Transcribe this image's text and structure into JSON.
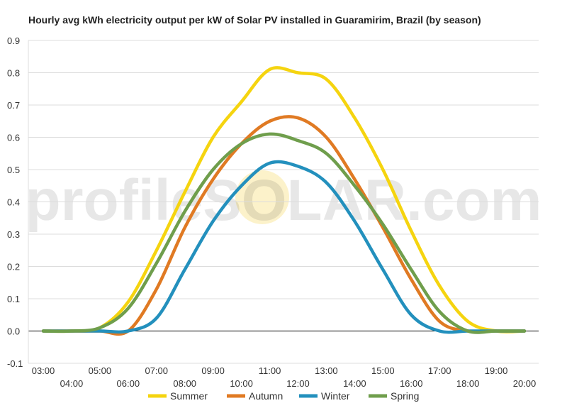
{
  "chart_data": {
    "type": "line",
    "title": "Hourly avg kWh electricity output per kW of Solar PV installed in Guaramirim, Brazil (by season)",
    "watermark": "profileSOLAR.com",
    "xlabel": "",
    "ylabel": "",
    "ylim": [
      -0.1,
      0.9
    ],
    "yticks": [
      -0.1,
      0.0,
      0.1,
      0.2,
      0.3,
      0.4,
      0.5,
      0.6,
      0.7,
      0.8,
      0.9
    ],
    "ytick_labels": [
      "-0.1",
      "0.0",
      "0.1",
      "0.2",
      "0.3",
      "0.4",
      "0.5",
      "0.6",
      "0.7",
      "0.8",
      "0.9"
    ],
    "x": [
      "03:00",
      "04:00",
      "05:00",
      "06:00",
      "07:00",
      "08:00",
      "09:00",
      "10:00",
      "11:00",
      "12:00",
      "13:00",
      "14:00",
      "15:00",
      "16:00",
      "17:00",
      "18:00",
      "19:00",
      "20:00"
    ],
    "grid": true,
    "legend_position": "bottom",
    "series": [
      {
        "name": "Summer",
        "color": "#f5d40f",
        "values": [
          0.0,
          0.0,
          0.01,
          0.09,
          0.25,
          0.43,
          0.6,
          0.71,
          0.81,
          0.8,
          0.78,
          0.66,
          0.5,
          0.31,
          0.14,
          0.03,
          0.0,
          0.0
        ]
      },
      {
        "name": "Autumn",
        "color": "#e07a23",
        "values": [
          0.0,
          0.0,
          0.0,
          0.0,
          0.13,
          0.32,
          0.47,
          0.58,
          0.65,
          0.66,
          0.6,
          0.47,
          0.32,
          0.16,
          0.03,
          0.0,
          0.0,
          0.0
        ]
      },
      {
        "name": "Winter",
        "color": "#2390bd",
        "values": [
          0.0,
          0.0,
          0.0,
          0.0,
          0.04,
          0.19,
          0.34,
          0.45,
          0.52,
          0.51,
          0.46,
          0.34,
          0.19,
          0.05,
          0.0,
          0.0,
          0.0,
          0.0
        ]
      },
      {
        "name": "Spring",
        "color": "#6f9e4c",
        "values": [
          0.0,
          0.0,
          0.01,
          0.07,
          0.21,
          0.37,
          0.5,
          0.58,
          0.61,
          0.59,
          0.55,
          0.45,
          0.33,
          0.19,
          0.06,
          0.0,
          0.0,
          0.0
        ]
      }
    ]
  }
}
